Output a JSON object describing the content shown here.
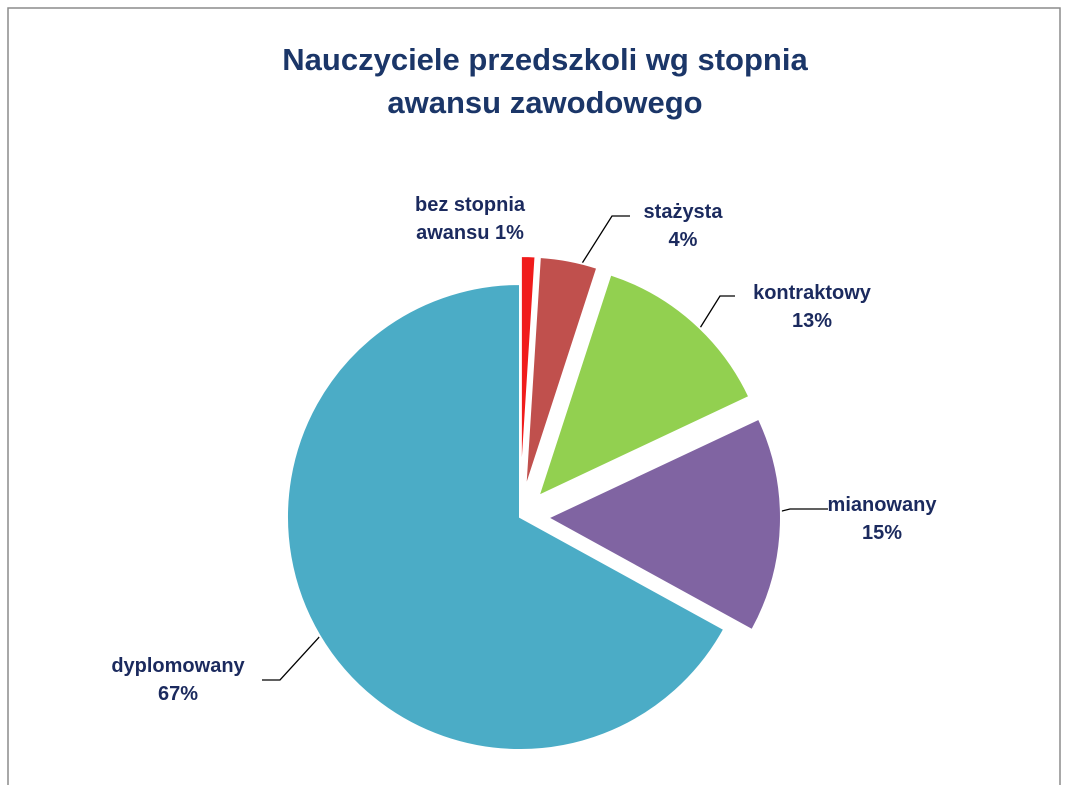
{
  "chart_data": {
    "type": "pie",
    "title": "Nauczyciele przedszkoli wg stopnia awansu zawodowego",
    "categories": [
      "bez stopnia awansu",
      "stażysta",
      "kontraktowy",
      "mianowany",
      "dyplomowany"
    ],
    "values": [
      1,
      4,
      13,
      15,
      67
    ],
    "value_labels": [
      "1%",
      "4%",
      "13%",
      "15%",
      "67%"
    ],
    "colors": [
      "#f01c1c",
      "#c0504d",
      "#92d050",
      "#8064a2",
      "#4bacc6"
    ],
    "exploded": [
      true,
      true,
      true,
      true,
      false
    ]
  }
}
